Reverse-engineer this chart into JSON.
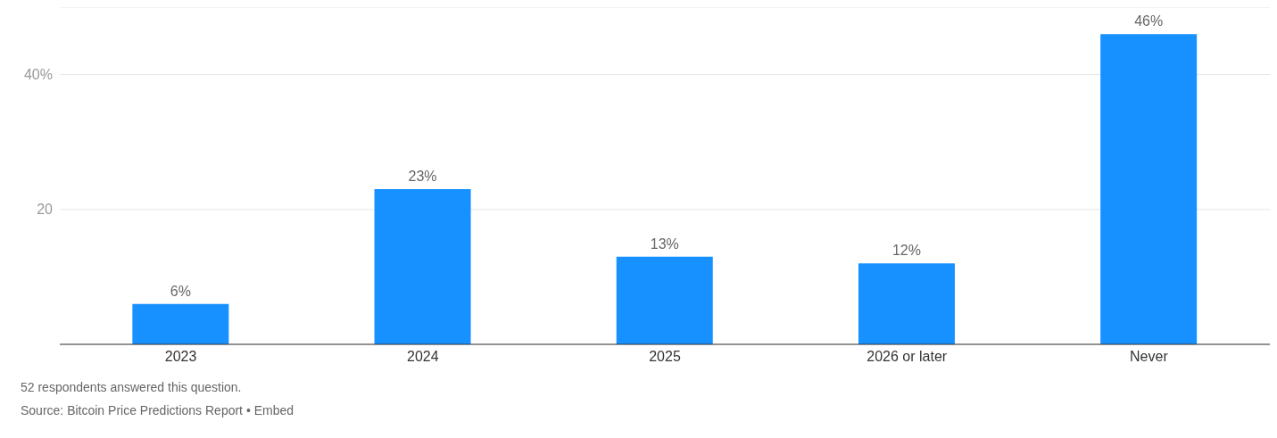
{
  "chart_data": {
    "type": "bar",
    "categories": [
      "2023",
      "2024",
      "2025",
      "2026 or later",
      "Never"
    ],
    "values": [
      6,
      23,
      13,
      12,
      46
    ],
    "value_labels": [
      "6%",
      "23%",
      "13%",
      "12%",
      "46%"
    ],
    "color": "#1691ff",
    "ylim": [
      0,
      50
    ],
    "yticks": [
      {
        "value": 20,
        "label": "20"
      },
      {
        "value": 40,
        "label": "40%"
      }
    ],
    "grid": "y",
    "annotations": [
      "52 respondents answered this question.",
      "Source: Bitcoin Price Predictions Report • Embed"
    ]
  }
}
